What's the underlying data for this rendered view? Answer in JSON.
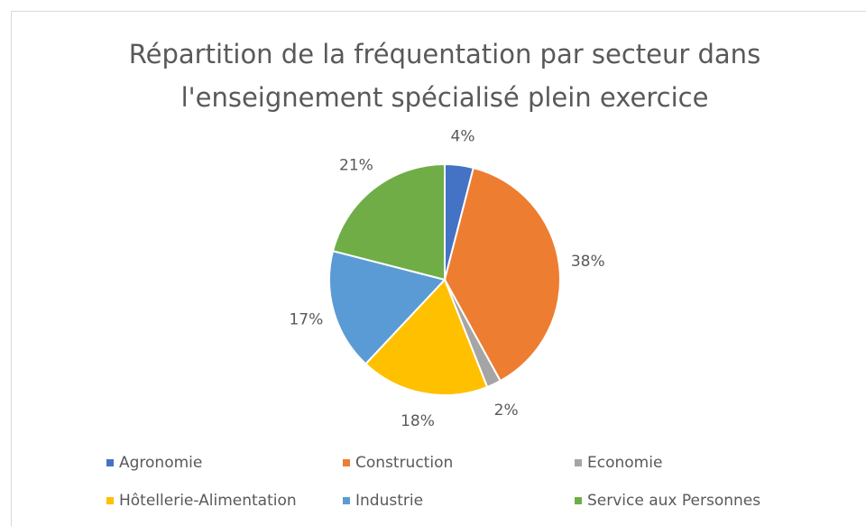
{
  "chart_data": {
    "type": "pie",
    "title": "Répartition de la fréquentation par secteur dans l'enseignement spécialisé plein exercice",
    "categories": [
      "Agronomie",
      "Construction",
      "Economie",
      "Hôtellerie-Alimentation",
      "Industrie",
      "Service aux Personnes"
    ],
    "values": [
      4,
      38,
      2,
      18,
      17,
      21
    ],
    "value_labels": [
      "4%",
      "38%",
      "2%",
      "18%",
      "17%",
      "21%"
    ],
    "colors": [
      "#4472c4",
      "#ed7d31",
      "#a5a5a5",
      "#ffc000",
      "#5b9bd5",
      "#70ad47"
    ],
    "legend": "bottom"
  }
}
